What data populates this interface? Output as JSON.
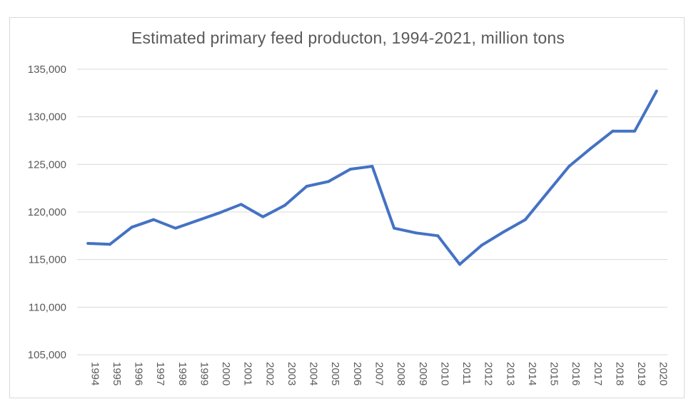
{
  "chart_data": {
    "type": "line",
    "title": "Estimated primary feed producton, 1994-2021, million tons",
    "xlabel": "",
    "ylabel": "",
    "ylim": [
      105000,
      135000
    ],
    "y_ticks": [
      105000,
      110000,
      115000,
      120000,
      125000,
      130000,
      135000
    ],
    "y_tick_labels": [
      "105,000",
      "110,000",
      "115,000",
      "120,000",
      "125,000",
      "130,000",
      "135,000"
    ],
    "grid": true,
    "legend": "none",
    "categories": [
      "1994",
      "1995",
      "1996",
      "1997",
      "1998",
      "1999",
      "2000",
      "2001",
      "2002",
      "2003",
      "2004",
      "2005",
      "2006",
      "2007",
      "2008",
      "2009",
      "2010",
      "2011",
      "2012",
      "2013",
      "2014",
      "2015",
      "2016",
      "2017",
      "2018",
      "2019",
      "2020"
    ],
    "series": [
      {
        "color": "#4472c4",
        "values": [
          116700,
          116600,
          118400,
          119200,
          118300,
          119100,
          119900,
          120800,
          119500,
          120700,
          122700,
          123200,
          124500,
          124800,
          118300,
          117800,
          117500,
          114500,
          116500,
          117900,
          119200,
          122000,
          124800,
          126700,
          128500,
          128500,
          132700
        ]
      }
    ]
  }
}
